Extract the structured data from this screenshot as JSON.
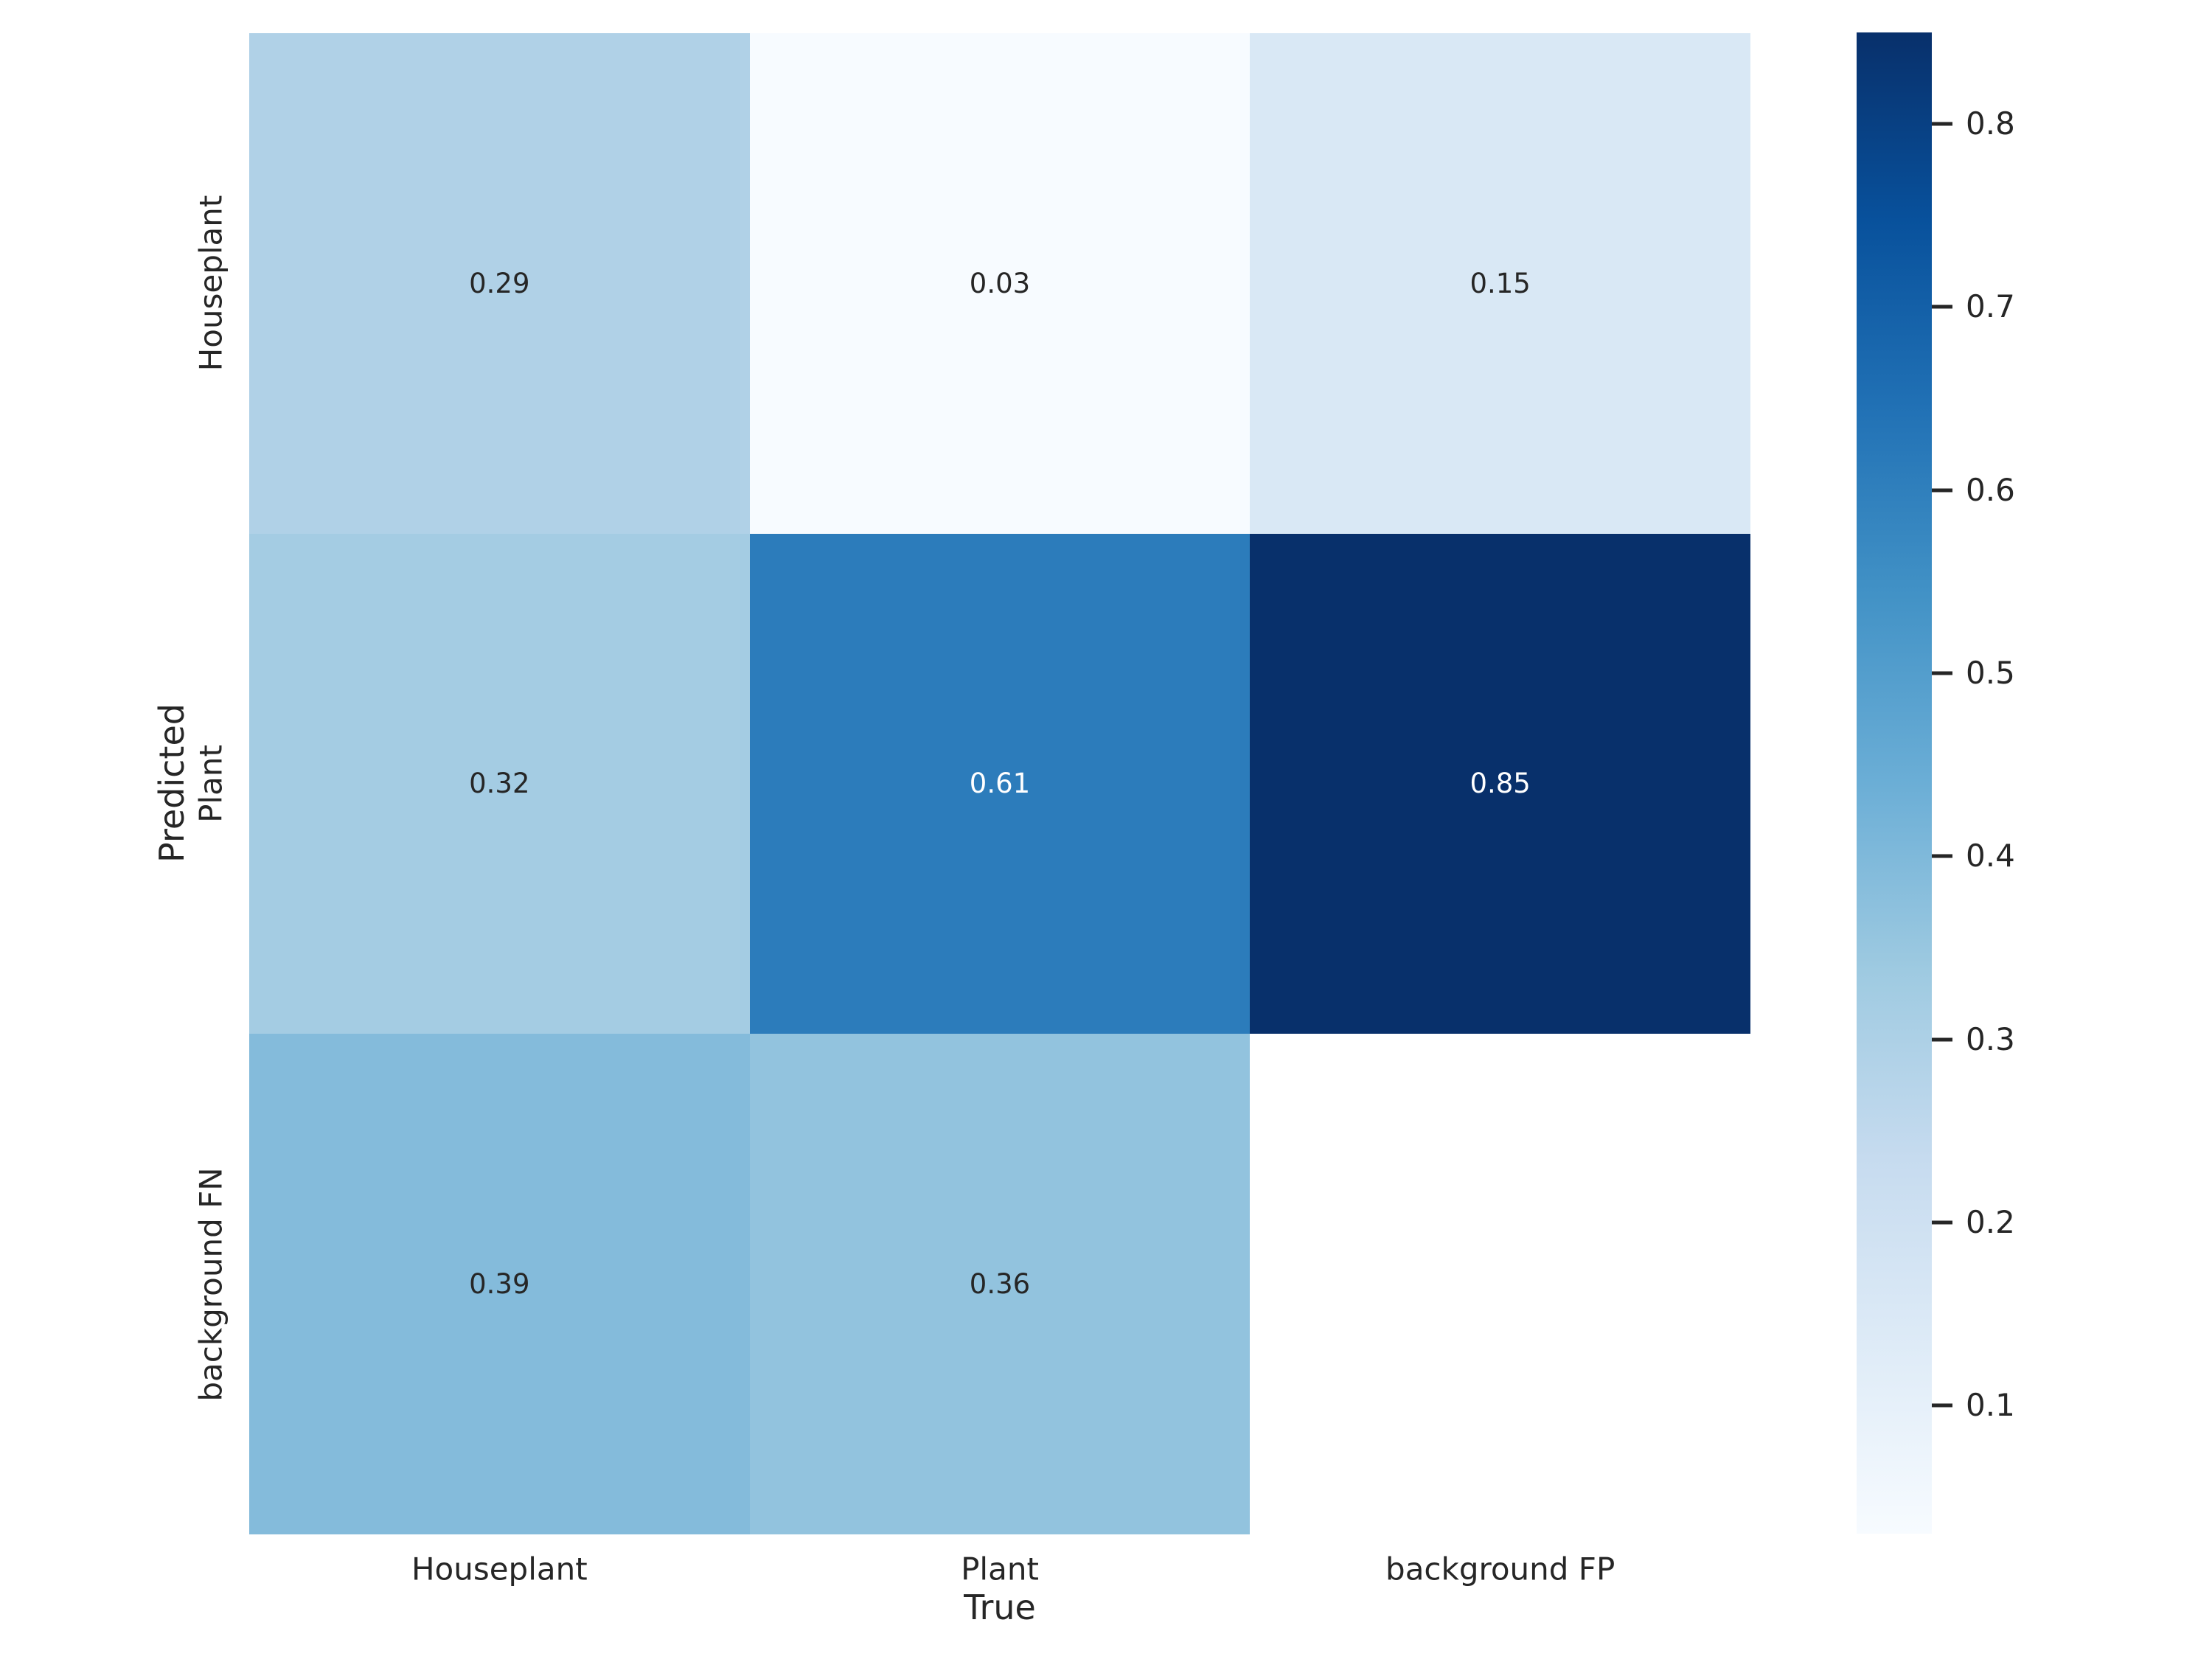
{
  "figure": {
    "xlabel": "True",
    "ylabel": "Predicted"
  },
  "chart_data": {
    "type": "heatmap",
    "title": "",
    "xlabel": "True",
    "ylabel": "Predicted",
    "x_categories": [
      "Houseplant",
      "Plant",
      "background FP"
    ],
    "y_categories": [
      "Houseplant",
      "Plant",
      "background FN"
    ],
    "values": [
      [
        0.29,
        0.03,
        0.15
      ],
      [
        0.32,
        0.61,
        0.85
      ],
      [
        0.39,
        0.36,
        null
      ]
    ],
    "cell_labels": [
      [
        "0.29",
        "0.03",
        "0.15"
      ],
      [
        "0.32",
        "0.61",
        "0.85"
      ],
      [
        "0.39",
        "0.36",
        ""
      ]
    ],
    "cell_colors": [
      [
        "#b0d1e7",
        "#f7fbff",
        "#d9e8f5"
      ],
      [
        "#a4cce3",
        "#2c7cbb",
        "#08306b"
      ],
      [
        "#84bbdb",
        "#92c3de",
        "#ffffff"
      ]
    ],
    "colormap": "Blues",
    "vmin": 0.03,
    "vmax": 0.85,
    "colorbar_ticks": [
      0.8,
      0.7,
      0.6,
      0.5,
      0.4,
      0.3,
      0.2,
      0.1
    ],
    "colorbar_tick_labels": [
      "0.8",
      "0.7",
      "0.6",
      "0.5",
      "0.4",
      "0.3",
      "0.2",
      "0.1"
    ],
    "annotation_dark_color": "#262626",
    "annotation_light_color": "#ffffff",
    "text_white_threshold": 0.5,
    "blues_gradient_stops": [
      "#08306b",
      "#08519c",
      "#2171b5",
      "#4292c6",
      "#6baed6",
      "#9ecae1",
      "#c6dbef",
      "#deebf7",
      "#f7fbff"
    ],
    "legend_position": "right-colorbar",
    "grid": false
  }
}
